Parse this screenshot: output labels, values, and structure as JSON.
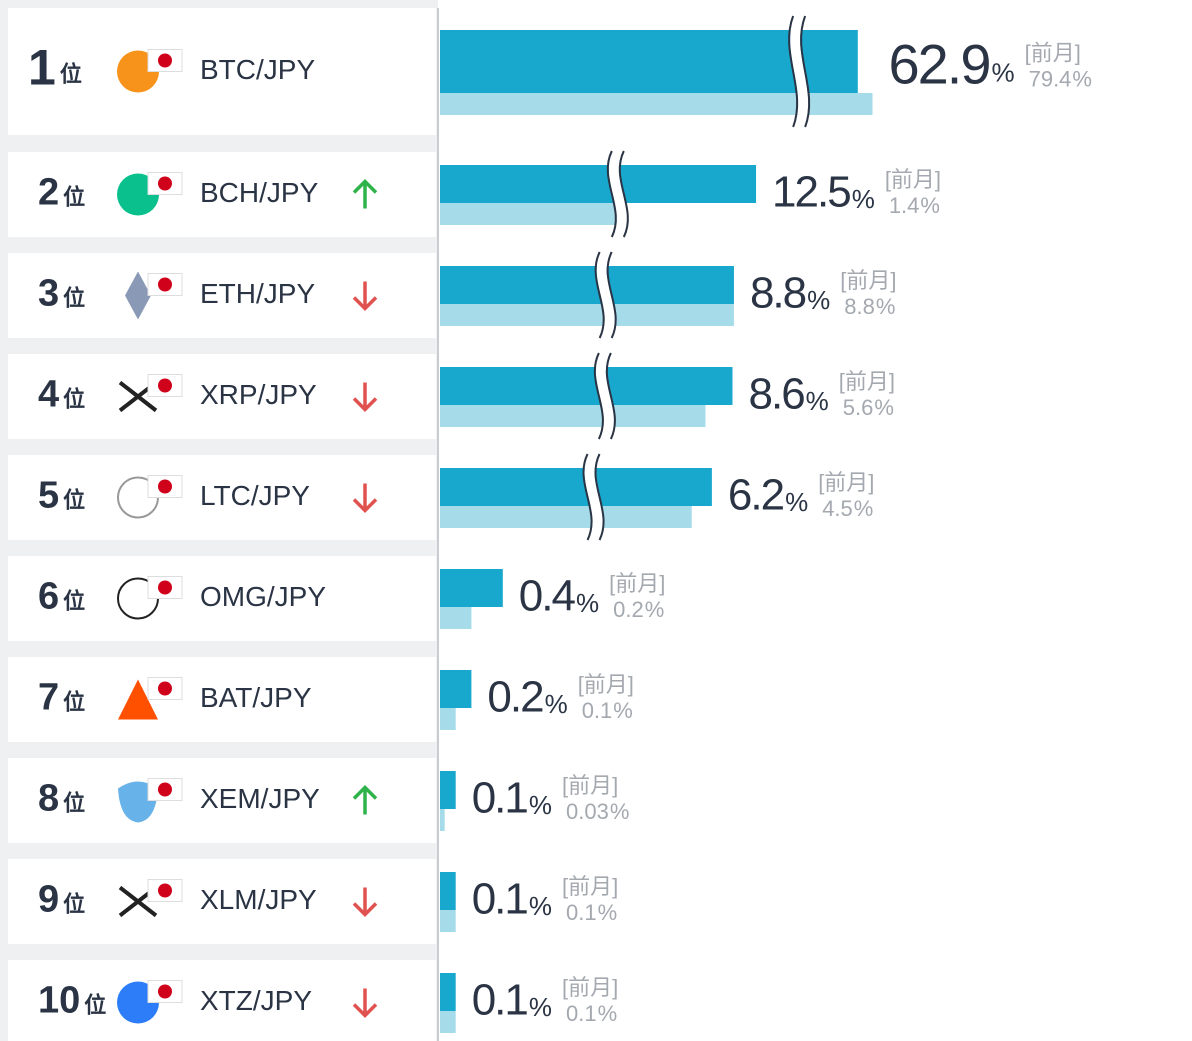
{
  "chart_data": {
    "type": "bar",
    "orientation": "horizontal",
    "ranks": [
      1,
      2,
      3,
      4,
      5,
      6,
      7,
      8,
      9,
      10
    ],
    "rank_unit": "位",
    "categories": [
      "BTC/JPY",
      "BCH/JPY",
      "ETH/JPY",
      "XRP/JPY",
      "LTC/JPY",
      "OMG/JPY",
      "BAT/JPY",
      "XEM/JPY",
      "XLM/JPY",
      "XTZ/JPY"
    ],
    "trends": [
      null,
      "up",
      "down",
      "down",
      "down",
      null,
      null,
      "up",
      "down",
      "down"
    ],
    "unit": "%",
    "previous_label": "[前月]",
    "series": [
      {
        "name": "current",
        "color": "#19a8cd",
        "values": [
          62.9,
          12.5,
          8.8,
          8.6,
          6.2,
          0.4,
          0.2,
          0.1,
          0.1,
          0.1
        ]
      },
      {
        "name": "previous",
        "color": "#a6dcea",
        "values": [
          79.4,
          1.4,
          8.8,
          5.6,
          4.5,
          0.2,
          0.1,
          0.03,
          0.1,
          0.1
        ]
      }
    ]
  }
}
